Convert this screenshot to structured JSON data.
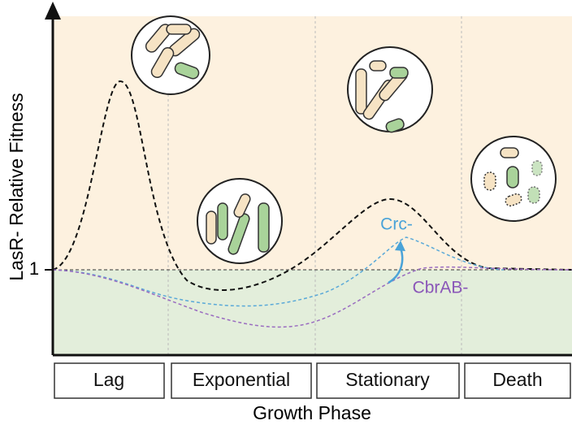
{
  "y_axis": {
    "label": "LasR- Relative Fitness",
    "tick": "1"
  },
  "x_axis": {
    "label": "Growth Phase",
    "phases": [
      "Lag",
      "Exponential",
      "Stationary",
      "Death"
    ]
  },
  "curve_labels": {
    "crc": "Crc-",
    "cbrab": "CbrAB-"
  }
}
